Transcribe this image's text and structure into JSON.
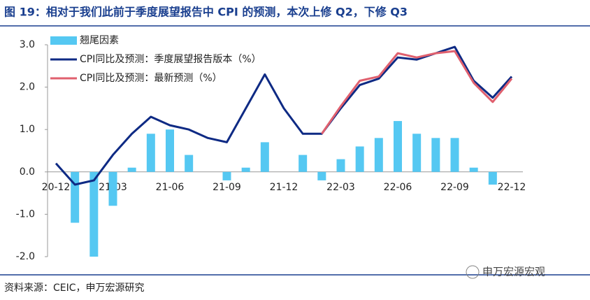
{
  "chart_data": {
    "type": "combo",
    "title": "图 19：相对于我们此前于季度展望报告中 CPI 的预测，本次上修 Q2，下修 Q3",
    "source": "资料来源：CEIC，申万宏源研究",
    "watermark": "申万宏源宏观",
    "categories": [
      "20-12",
      null,
      null,
      "21-03",
      null,
      null,
      "21-06",
      null,
      null,
      "21-09",
      null,
      null,
      "21-12",
      null,
      null,
      "22-03",
      null,
      null,
      "22-06",
      null,
      null,
      "22-09",
      null,
      null,
      "22-12"
    ],
    "series": [
      {
        "name": "翘尾因素",
        "type": "bar",
        "color": "#55c8f2",
        "values": [
          0,
          -1.2,
          -2.0,
          -0.8,
          0.1,
          0.9,
          1.0,
          0.4,
          0,
          -0.2,
          0.1,
          0.7,
          0,
          0.4,
          -0.2,
          0.3,
          0.6,
          0.8,
          1.2,
          0.9,
          0.8,
          0.8,
          0.1,
          -0.3,
          0
        ]
      },
      {
        "name": "CPI同比及预测：季度展望报告版本（%）",
        "type": "line",
        "color": "#0e2a84",
        "values": [
          0.2,
          -0.3,
          -0.2,
          0.4,
          0.9,
          1.3,
          1.1,
          1.0,
          0.8,
          0.7,
          1.5,
          2.3,
          1.5,
          0.9,
          0.9,
          1.5,
          2.05,
          2.2,
          2.7,
          2.65,
          2.8,
          2.95,
          2.15,
          1.75,
          2.25
        ]
      },
      {
        "name": "CPI同比及预测：最新预测（%）",
        "type": "line",
        "color": "#e0606e",
        "values": [
          null,
          null,
          null,
          null,
          null,
          null,
          null,
          null,
          null,
          null,
          null,
          null,
          null,
          null,
          0.9,
          1.55,
          2.15,
          2.25,
          2.8,
          2.7,
          2.8,
          2.85,
          2.1,
          1.65,
          2.2
        ]
      }
    ],
    "ylim": [
      -2.0,
      3.0
    ],
    "yticks": [
      {
        "value": -2,
        "label": "-2.0"
      },
      {
        "value": -1,
        "label": "-1.0"
      },
      {
        "value": 0,
        "label": "0.0"
      },
      {
        "value": 1,
        "label": "1.0"
      },
      {
        "value": 2,
        "label": "2.0"
      },
      {
        "value": 3,
        "label": "3.0"
      }
    ],
    "grid": false
  }
}
